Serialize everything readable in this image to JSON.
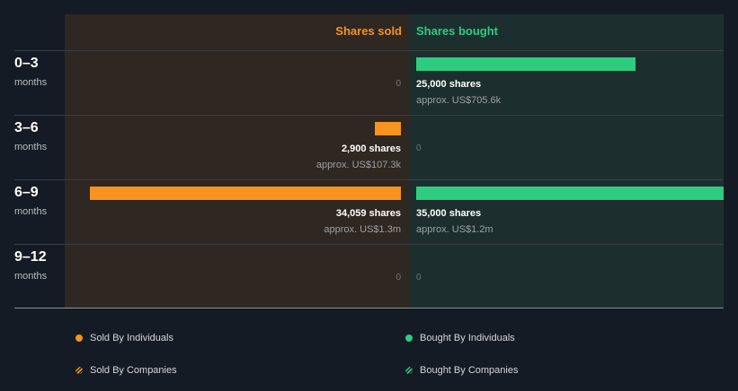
{
  "colors": {
    "sold": "#f7931e",
    "bought": "#2ecc7f",
    "background": "#151b24"
  },
  "header": {
    "sold": "Shares sold",
    "bought": "Shares bought"
  },
  "rows": [
    {
      "period": "0–3",
      "unit": "months",
      "sold": {
        "shares": null,
        "approx": null,
        "zero": "0"
      },
      "bought": {
        "shares": "25,000 shares",
        "approx": "approx. US$705.6k",
        "zero": null
      }
    },
    {
      "period": "3–6",
      "unit": "months",
      "sold": {
        "shares": "2,900 shares",
        "approx": "approx. US$107.3k",
        "zero": null
      },
      "bought": {
        "shares": null,
        "approx": null,
        "zero": "0"
      }
    },
    {
      "period": "6–9",
      "unit": "months",
      "sold": {
        "shares": "34,059 shares",
        "approx": "approx. US$1.3m",
        "zero": null
      },
      "bought": {
        "shares": "35,000 shares",
        "approx": "approx. US$1.2m",
        "zero": null
      }
    },
    {
      "period": "9–12",
      "unit": "months",
      "sold": {
        "shares": null,
        "approx": null,
        "zero": "0"
      },
      "bought": {
        "shares": null,
        "approx": null,
        "zero": "0"
      }
    }
  ],
  "legend": [
    {
      "label": "Sold By Individuals",
      "color": "#f7931e",
      "style": "solid"
    },
    {
      "label": "Bought By Individuals",
      "color": "#2ecc7f",
      "style": "solid"
    },
    {
      "label": "Sold By Companies",
      "color": "#f7931e",
      "style": "hatched"
    },
    {
      "label": "Bought By Companies",
      "color": "#2ecc7f",
      "style": "hatched"
    }
  ],
  "chart_data": {
    "type": "bar",
    "categories": [
      "0–3 months",
      "3–6 months",
      "6–9 months",
      "9–12 months"
    ],
    "series": [
      {
        "name": "Shares sold",
        "values": [
          0,
          2900,
          34059,
          0
        ],
        "approx_usd": [
          null,
          "approx. US$107.3k",
          "approx. US$1.3m",
          null
        ]
      },
      {
        "name": "Shares bought",
        "values": [
          25000,
          0,
          35000,
          0
        ],
        "approx_usd": [
          "approx. US$705.6k",
          null,
          "approx. US$1.2m",
          null
        ]
      }
    ],
    "legend": [
      "Sold By Individuals",
      "Bought By Individuals",
      "Sold By Companies",
      "Bought By Companies"
    ],
    "legend_placement": "bottom"
  }
}
